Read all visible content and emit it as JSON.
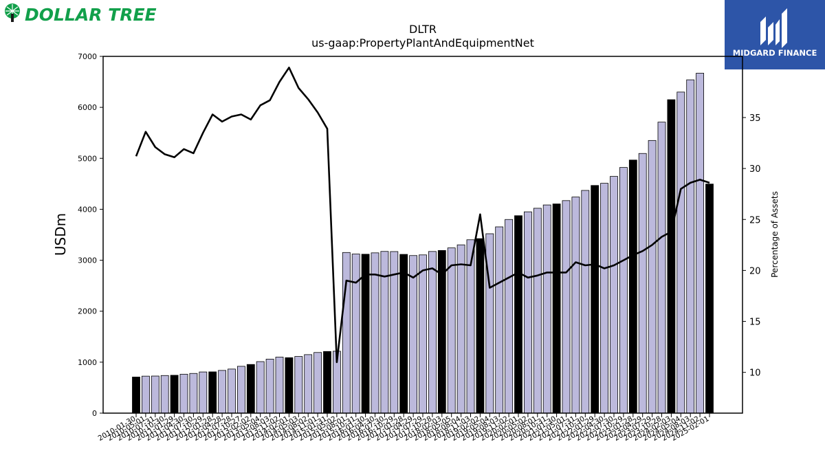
{
  "brand": {
    "name": "DOLLAR TREE",
    "color": "#12a04b"
  },
  "partner": {
    "name": "MIDGARD FINANCE",
    "bg": "#2d55a8"
  },
  "chart_data": {
    "type": "bar",
    "title": "DLTR",
    "subtitle": "us-gaap:PropertyPlantAndEquipmentNet",
    "ylabel": "USDm",
    "y2label": "Percentage of Assets",
    "ylim": [
      0,
      7000
    ],
    "yticks": [
      0,
      1000,
      2000,
      3000,
      4000,
      5000,
      6000,
      7000
    ],
    "y2lim": [
      6.0,
      41.0
    ],
    "y2ticks": [
      10,
      15,
      20,
      25,
      30,
      35
    ],
    "grid": false,
    "categories": [
      "2010-01-30",
      "2010-05-01",
      "2010-07-31",
      "2010-10-30",
      "2011-01-29",
      "2011-04-30",
      "2011-07-30",
      "2011-10-29",
      "2012-01-28",
      "2012-04-28",
      "2012-07-28",
      "2012-10-27",
      "2013-02-02",
      "2013-05-04",
      "2013-08-03",
      "2013-11-02",
      "2014-02-01",
      "2014-05-03",
      "2014-08-02",
      "2014-11-01",
      "2015-01-31",
      "2015-05-02",
      "2015-08-01",
      "2015-10-31",
      "2016-01-30",
      "2016-04-30",
      "2016-07-30",
      "2016-10-29",
      "2017-01-28",
      "2017-04-29",
      "2017-07-29",
      "2017-10-28",
      "2018-02-03",
      "2018-05-05",
      "2018-08-04",
      "2018-11-03",
      "2019-02-02",
      "2019-05-04",
      "2019-08-03",
      "2019-11-02",
      "2020-02-01",
      "2020-05-02",
      "2020-08-01",
      "2020-10-31",
      "2021-01-30",
      "2021-05-01",
      "2021-07-31",
      "2021-10-30",
      "2022-01-29",
      "2022-04-30",
      "2022-07-30",
      "2022-10-29",
      "2023-01-28",
      "2023-04-29",
      "2023-07-29",
      "2023-10-28",
      "2024-02-03",
      "2024-05-04",
      "2024-08-03",
      "2024-11-02",
      "2025-02-01"
    ],
    "series": [
      {
        "type": "bar",
        "fiscal_year_end_color": "#000000",
        "color": "#bcb9dc",
        "values": [
          708,
          726,
          728,
          738,
          743,
          764,
          779,
          808,
          810,
          838,
          865,
          919,
          955,
          1011,
          1060,
          1099,
          1088,
          1112,
          1148,
          1190,
          1210,
          1215,
          3152,
          3122,
          3118,
          3145,
          3173,
          3170,
          3115,
          3092,
          3105,
          3172,
          3192,
          3242,
          3302,
          3402,
          3424,
          3520,
          3655,
          3800,
          3874,
          3950,
          4020,
          4085,
          4105,
          4170,
          4240,
          4370,
          4467,
          4510,
          4645,
          4820,
          4966,
          5095,
          5350,
          5710,
          6150,
          6300,
          6540,
          6670,
          4495
        ],
        "fiscal_year_end": [
          true,
          false,
          false,
          false,
          true,
          false,
          false,
          false,
          true,
          false,
          false,
          false,
          true,
          false,
          false,
          false,
          true,
          false,
          false,
          false,
          true,
          false,
          false,
          false,
          true,
          false,
          false,
          false,
          true,
          false,
          false,
          false,
          true,
          false,
          false,
          false,
          true,
          false,
          false,
          false,
          true,
          false,
          false,
          false,
          true,
          false,
          false,
          false,
          true,
          false,
          false,
          false,
          true,
          false,
          false,
          false,
          true,
          false,
          false,
          false,
          true
        ]
      },
      {
        "type": "line",
        "axis": "right",
        "color": "#000000",
        "values": [
          31.2,
          33.6,
          32.1,
          31.4,
          31.1,
          31.9,
          31.5,
          33.5,
          35.3,
          34.6,
          35.1,
          35.3,
          34.8,
          36.2,
          36.7,
          38.5,
          39.9,
          37.9,
          36.8,
          35.5,
          33.9,
          11.0,
          19.0,
          18.8,
          19.6,
          19.6,
          19.4,
          19.6,
          19.8,
          19.3,
          20.0,
          20.2,
          19.6,
          20.5,
          20.6,
          20.5,
          25.5,
          18.3,
          18.8,
          19.3,
          19.8,
          19.3,
          19.5,
          19.8,
          19.8,
          19.8,
          20.8,
          20.5,
          20.6,
          20.2,
          20.5,
          21.0,
          21.5,
          21.9,
          22.5,
          23.3,
          23.8,
          28.0,
          28.6,
          28.9,
          28.6
        ]
      }
    ]
  }
}
